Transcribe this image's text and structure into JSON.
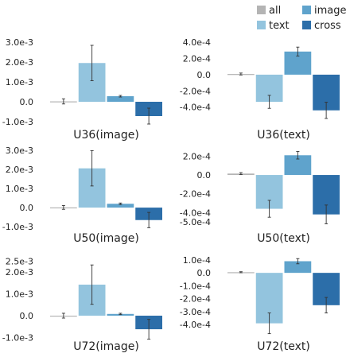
{
  "legend": {
    "placement": "top-right",
    "items": [
      {
        "label": "all",
        "color": "#b4b4b4"
      },
      {
        "label": "image",
        "color": "#5fa3cc"
      },
      {
        "label": "text",
        "color": "#93c4de"
      },
      {
        "label": "cross",
        "color": "#2c6ea9"
      }
    ]
  },
  "chart_data": [
    {
      "type": "bar",
      "xlabel": "U36(image)",
      "categories": [
        "all",
        "text",
        "image",
        "cross"
      ],
      "values": [
        2e-05,
        0.00195,
        0.00028,
        -0.00072
      ],
      "errors": [
        0.00013,
        0.00089,
        4e-05,
        0.0004
      ],
      "yticks": [
        "3.0e-3",
        "2.0e-3",
        "1.0e-3",
        "0.0",
        "-1.0e-3"
      ],
      "ylim": [
        -0.0012,
        0.0032
      ]
    },
    {
      "type": "bar",
      "xlabel": "U36(text)",
      "categories": [
        "all",
        "text",
        "image",
        "cross"
      ],
      "values": [
        8e-06,
        -0.000335,
        0.000285,
        -0.00044
      ],
      "errors": [
        1.2e-05,
        8e-05,
        5.5e-05,
        0.0001
      ],
      "yticks": [
        "4.0e-4",
        "2.0e-4",
        "0.0",
        "-2.0e-4",
        "-4.0e-4"
      ],
      "ylim": [
        -0.00055,
        0.00045
      ]
    },
    {
      "type": "bar",
      "xlabel": "U50(image)",
      "categories": [
        "all",
        "text",
        "image",
        "cross"
      ],
      "values": [
        1e-05,
        0.00205,
        0.0002,
        -0.00065
      ],
      "errors": [
        0.0001,
        0.00092,
        4e-05,
        0.0004
      ],
      "yticks": [
        "3.0e-3",
        "2.0e-3",
        "1.0e-3",
        "0.0",
        "-1.0e-3"
      ],
      "ylim": [
        -0.0012,
        0.0032
      ]
    },
    {
      "type": "bar",
      "xlabel": "U50(text)",
      "categories": [
        "all",
        "text",
        "image",
        "cross"
      ],
      "values": [
        1.5e-05,
        -0.00036,
        0.00021,
        -0.00042
      ],
      "errors": [
        1e-05,
        9e-05,
        4e-05,
        0.0001
      ],
      "yticks": [
        "2.0e-4",
        "0.0",
        "-2.0e-4",
        "-4.0e-4",
        "-5.0e-4"
      ],
      "ylim": [
        -0.00055,
        0.00028
      ]
    },
    {
      "type": "bar",
      "xlabel": "U72(image)",
      "categories": [
        "all",
        "text",
        "image",
        "cross"
      ],
      "values": [
        0.0,
        0.00142,
        8e-05,
        -0.00062
      ],
      "errors": [
        0.00011,
        0.0009,
        3e-05,
        0.00045
      ],
      "yticks": [
        "2.5e-3",
        "2.0e-3",
        "1.0e-3",
        "0.0",
        "-1.0e-3"
      ],
      "ylim": [
        -0.0012,
        0.0028
      ]
    },
    {
      "type": "bar",
      "xlabel": "U72(text)",
      "categories": [
        "all",
        "text",
        "image",
        "cross"
      ],
      "values": [
        5e-06,
        -0.00039,
        9e-05,
        -0.00025
      ],
      "errors": [
        4e-06,
        8e-05,
        2e-05,
        6e-05
      ],
      "yticks": [
        "1.0e-4",
        "0.0",
        "-1.0e-4",
        "-2.0e-4",
        "-3.0e-4",
        "-4.0e-4"
      ],
      "ylim": [
        -0.00046,
        0.00013
      ]
    }
  ]
}
